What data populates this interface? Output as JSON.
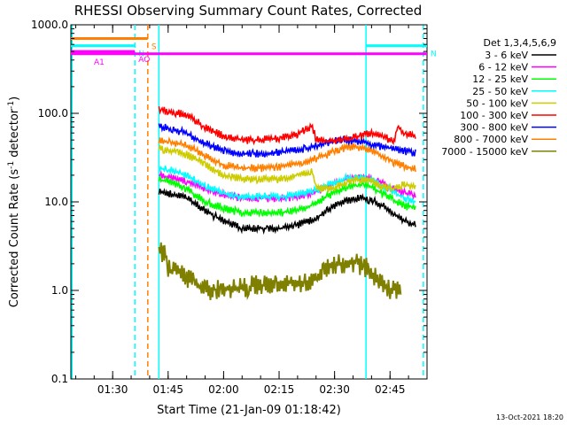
{
  "chart_data": {
    "type": "line",
    "title": "RHESSI Observing Summary Count Rates, Corrected",
    "xlabel": "Start Time (21-Jan-09 01:18:42)",
    "ylabel_main": "Corrected Count Rate (s",
    "ylabel_sup1": "-1",
    "ylabel_mid": " detector",
    "ylabel_sup2": "-1",
    "ylabel_end": ")",
    "footer_date": "13-Oct-2021 18:20",
    "yscale": "log",
    "ylim": [
      0.1,
      1000
    ],
    "xlim": [
      "01:18:42",
      "02:55:00"
    ],
    "y_ticks": [
      {
        "value": 0.1,
        "label": "0.1"
      },
      {
        "value": 1,
        "label": "1.0"
      },
      {
        "value": 10,
        "label": "10.0"
      },
      {
        "value": 100,
        "label": "100.0"
      },
      {
        "value": 1000,
        "label": "1000.0"
      }
    ],
    "x_ticks": [
      {
        "time": "01:30",
        "label": "01:30"
      },
      {
        "time": "01:45",
        "label": "01:45"
      },
      {
        "time": "02:00",
        "label": "02:00"
      },
      {
        "time": "02:15",
        "label": "02:15"
      },
      {
        "time": "02:30",
        "label": "02:30"
      },
      {
        "time": "02:45",
        "label": "02:45"
      }
    ],
    "legend_title": "Det 1,3,4,5,6,9",
    "legend_position": "right",
    "series": [
      {
        "name": "3 - 6 keV",
        "color": "#000000",
        "x": [
          "01:42:30",
          "01:45",
          "01:50",
          "01:55",
          "02:00",
          "02:05",
          "02:10",
          "02:15",
          "02:20",
          "02:25",
          "02:28",
          "02:31",
          "02:34",
          "02:37",
          "02:40",
          "02:43",
          "02:46",
          "02:49",
          "02:52"
        ],
        "y": [
          13,
          12.5,
          11,
          8,
          6,
          5,
          5,
          5,
          5.5,
          6.5,
          8,
          9.5,
          10.5,
          11,
          10.5,
          9,
          7.5,
          6,
          5.5
        ]
      },
      {
        "name": "6 - 12 keV",
        "color": "#ff00ff",
        "x": [
          "01:42:30",
          "01:45",
          "01:50",
          "01:55",
          "02:00",
          "02:05",
          "02:10",
          "02:15",
          "02:20",
          "02:25",
          "02:28",
          "02:31",
          "02:34",
          "02:37",
          "02:40",
          "02:43",
          "02:46",
          "02:49",
          "02:52"
        ],
        "y": [
          20,
          19,
          17,
          14,
          12,
          11,
          11,
          11,
          11.5,
          13,
          15,
          17,
          18.5,
          19,
          18,
          16,
          14,
          12.5,
          12
        ]
      },
      {
        "name": "12 - 25 keV",
        "color": "#00ff00",
        "x": [
          "01:42:30",
          "01:45",
          "01:50",
          "01:55",
          "02:00",
          "02:05",
          "02:10",
          "02:15",
          "02:20",
          "02:25",
          "02:28",
          "02:31",
          "02:34",
          "02:37",
          "02:40",
          "02:43",
          "02:46",
          "02:49",
          "02:52"
        ],
        "y": [
          18,
          17,
          14,
          10,
          8.5,
          7.5,
          7.5,
          7.5,
          8,
          9.5,
          11.5,
          13.5,
          15,
          15.5,
          14.5,
          12.5,
          10.5,
          9,
          8.5
        ]
      },
      {
        "name": "25 - 50 keV",
        "color": "#00ffff",
        "x": [
          "01:42:30",
          "01:45",
          "01:50",
          "01:55",
          "02:00",
          "02:05",
          "02:10",
          "02:15",
          "02:20",
          "02:25",
          "02:28",
          "02:31",
          "02:34",
          "02:37",
          "02:40",
          "02:43",
          "02:46",
          "02:49",
          "02:52"
        ],
        "y": [
          24,
          23,
          20,
          15,
          12.5,
          11.5,
          11.5,
          11.5,
          12,
          13.5,
          15.5,
          17.5,
          18.5,
          18.5,
          17.5,
          15,
          13,
          11,
          10
        ]
      },
      {
        "name": "50 - 100 keV",
        "color": "#cccc00",
        "x": [
          "01:42:30",
          "01:45",
          "01:50",
          "01:55",
          "02:00",
          "02:05",
          "02:10",
          "02:15",
          "02:20",
          "02:24",
          "02:25",
          "02:28",
          "02:31",
          "02:34",
          "02:37",
          "02:40",
          "02:43",
          "02:46",
          "02:49",
          "02:52"
        ],
        "y": [
          40,
          38,
          34,
          26,
          20,
          18,
          18,
          18,
          20,
          22,
          14,
          14,
          15,
          17,
          18,
          17,
          15,
          14,
          16,
          14
        ]
      },
      {
        "name": "100 - 300 keV",
        "color": "#ff0000",
        "x": [
          "01:42:30",
          "01:45",
          "01:50",
          "01:55",
          "02:00",
          "02:05",
          "02:10",
          "02:15",
          "02:20",
          "02:22",
          "02:24",
          "02:25",
          "02:28",
          "02:31",
          "02:34",
          "02:37",
          "02:40",
          "02:43",
          "02:46",
          "02:47",
          "02:49",
          "02:52"
        ],
        "y": [
          110,
          105,
          95,
          70,
          55,
          50,
          50,
          52,
          58,
          65,
          72,
          50,
          48,
          50,
          52,
          56,
          60,
          55,
          48,
          70,
          60,
          55
        ]
      },
      {
        "name": "300 - 800 keV",
        "color": "#0000ff",
        "x": [
          "01:42:30",
          "01:45",
          "01:50",
          "01:55",
          "02:00",
          "02:05",
          "02:10",
          "02:15",
          "02:20",
          "02:25",
          "02:28",
          "02:31",
          "02:34",
          "02:37",
          "02:40",
          "02:43",
          "02:46",
          "02:49",
          "02:52"
        ],
        "y": [
          70,
          68,
          60,
          46,
          38,
          35,
          35,
          36,
          38,
          43,
          47,
          50,
          50,
          48,
          45,
          42,
          40,
          37,
          36
        ]
      },
      {
        "name": "800 - 7000 keV",
        "color": "#ff8000",
        "x": [
          "01:42:30",
          "01:45",
          "01:50",
          "01:55",
          "02:00",
          "02:05",
          "02:10",
          "02:15",
          "02:20",
          "02:25",
          "02:28",
          "02:31",
          "02:34",
          "02:37",
          "02:40",
          "02:43",
          "02:46",
          "02:49",
          "02:52"
        ],
        "y": [
          50,
          48,
          43,
          33,
          26,
          24,
          24,
          25,
          27,
          31,
          35,
          39,
          42,
          41,
          38,
          33,
          28,
          25,
          24
        ]
      },
      {
        "name": "7000 - 15000 keV",
        "color": "#808000",
        "x": [
          "01:42:30",
          "01:44",
          "01:45",
          "01:50",
          "01:55",
          "02:25",
          "02:27",
          "02:30",
          "02:33",
          "02:36",
          "02:39",
          "02:42",
          "02:45",
          "02:48"
        ],
        "y": [
          2.6,
          2.8,
          1.8,
          1.4,
          1.0,
          1.3,
          1.8,
          2.0,
          2.0,
          2.0,
          1.8,
          1.2,
          1.0,
          1.0
        ]
      }
    ],
    "attenuator_bars": [
      {
        "label": "S",
        "color": "#ff8000",
        "start": "01:18:42",
        "end": "01:39:30",
        "y": 700
      },
      {
        "label": "N",
        "color": "#00ffff",
        "start": "01:18:42",
        "end": "01:36:00",
        "y": 580
      },
      {
        "label": "N",
        "color": "#00ffff",
        "start": "02:38:30",
        "end": "02:55:00",
        "y": 580
      },
      {
        "label": "AO",
        "color": "#ff00ff",
        "start": "01:18:42",
        "end": "01:36:00",
        "y": 500
      },
      {
        "label": "A1",
        "color": "#ff00ff",
        "start": "01:18:42",
        "end": "02:55:00",
        "y": 470
      }
    ],
    "vertical_markers": [
      {
        "time": "01:19:00",
        "color": "#00ffff",
        "style": "solid"
      },
      {
        "time": "01:36:00",
        "color": "#00ffff",
        "style": "dashed"
      },
      {
        "time": "01:39:30",
        "color": "#ff8000",
        "style": "dashed"
      },
      {
        "time": "01:42:30",
        "color": "#00ffff",
        "style": "solid"
      },
      {
        "time": "02:38:30",
        "color": "#00ffff",
        "style": "solid"
      },
      {
        "time": "02:54:00",
        "color": "#00ffff",
        "style": "dashed"
      }
    ]
  }
}
